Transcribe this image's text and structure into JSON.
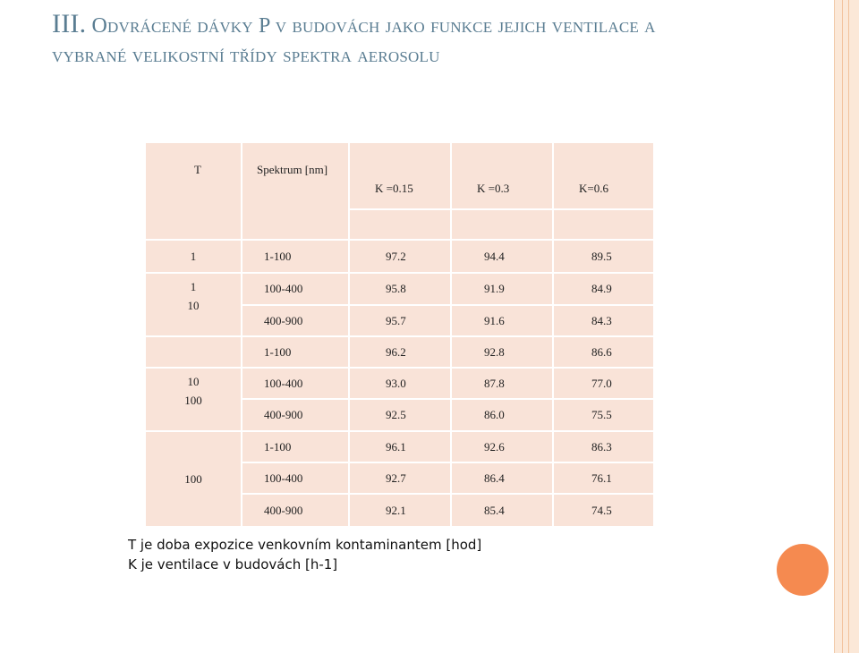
{
  "slide": {
    "title_lead": "III.",
    "title_rest": "Odvrácené dávky P v budovách jako funkce jejich ventilace a vybrané velikostní třídy spektra aerosolu"
  },
  "table": {
    "header": {
      "t": "T",
      "spectrum": "Spektrum [nm]",
      "k": [
        "K =0.15",
        "K =0.3",
        "K=0.6"
      ]
    },
    "groups": [
      {
        "t_label": "1",
        "rows": [
          {
            "spectrum": "1-100",
            "values": [
              "97.2",
              "94.4",
              "89.5"
            ]
          }
        ]
      },
      {
        "t_label": "1\n10",
        "rows": [
          {
            "spectrum": "100-400",
            "values": [
              "95.8",
              "91.9",
              "84.9"
            ]
          },
          {
            "spectrum": "400-900",
            "values": [
              "95.7",
              "91.6",
              "84.3"
            ]
          },
          {
            "spectrum": "1-100",
            "values": [
              "96.2",
              "92.8",
              "86.6"
            ]
          }
        ]
      },
      {
        "t_label": "10\n100",
        "rows": [
          {
            "spectrum": "100-400",
            "values": [
              "93.0",
              "87.8",
              "77.0"
            ]
          },
          {
            "spectrum": "400-900",
            "values": [
              "92.5",
              "86.0",
              "75.5"
            ]
          },
          {
            "spectrum": "1-100",
            "values": [
              "96.1",
              "92.6",
              "86.3"
            ]
          }
        ]
      },
      {
        "t_label": "100",
        "rows": [
          {
            "spectrum": "100-400",
            "values": [
              "92.7",
              "86.4",
              "76.1"
            ]
          },
          {
            "spectrum": "400-900",
            "values": [
              "92.1",
              "85.4",
              "74.5"
            ]
          }
        ]
      }
    ]
  },
  "footnote": {
    "line1": "T je doba expozice venkovním kontaminantem [hod]",
    "line2": "K je ventilace  v budovách  [h-1]"
  },
  "colors": {
    "title": "#5a7d92",
    "table_cell": "#f9e3d8",
    "accent_dot": "#f58a50",
    "stripe": "#fbe8d8"
  }
}
